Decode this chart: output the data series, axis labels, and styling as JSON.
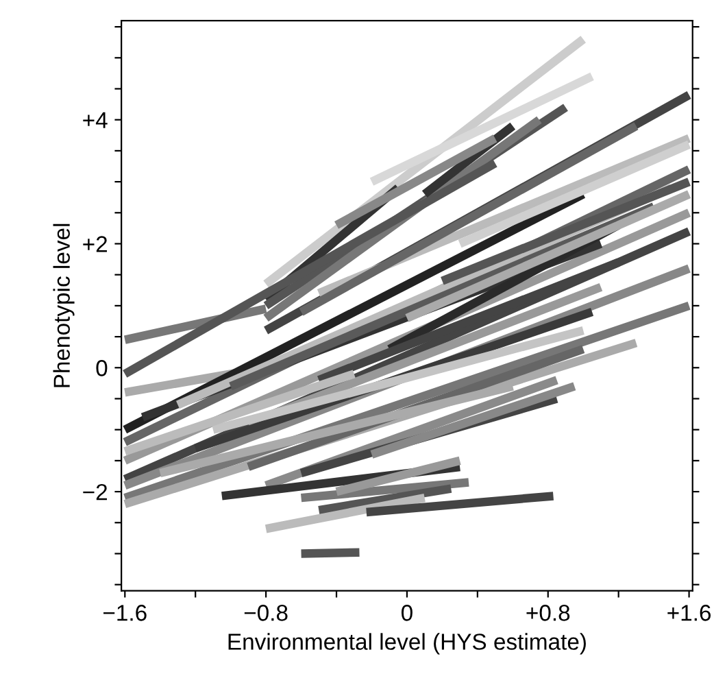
{
  "chart_data": {
    "type": "line",
    "xlabel": "Environmental level (HYS estimate)",
    "ylabel": "Phenotypic level",
    "xlim": [
      -1.62,
      1.62
    ],
    "ylim": [
      -3.6,
      5.6
    ],
    "xticks": [
      {
        "value": -1.6,
        "label": "−1.6"
      },
      {
        "value": -1.2,
        "label": null
      },
      {
        "value": -0.8,
        "label": "−0.8"
      },
      {
        "value": -0.4,
        "label": null
      },
      0,
      {
        "value": 0.4,
        "label": null
      },
      {
        "value": 0.8,
        "label": "+0.8"
      },
      {
        "value": 1.2,
        "label": null
      },
      {
        "value": 1.6,
        "label": "+1.6"
      }
    ],
    "yticks": [
      {
        "value": -3.5,
        "label": null
      },
      {
        "value": -3,
        "label": null
      },
      {
        "value": -2.5,
        "label": null
      },
      {
        "value": -2,
        "label": "−2"
      },
      {
        "value": -1.5,
        "label": null
      },
      {
        "value": -1,
        "label": null
      },
      {
        "value": -0.5,
        "label": null
      },
      0,
      {
        "value": 0.5,
        "label": null
      },
      {
        "value": 1,
        "label": null
      },
      {
        "value": 1.5,
        "label": null
      },
      {
        "value": 2,
        "label": "+2"
      },
      {
        "value": 2.5,
        "label": null
      },
      {
        "value": 3,
        "label": null
      },
      {
        "value": 3.5,
        "label": null
      },
      {
        "value": 4,
        "label": "+4"
      },
      {
        "value": 4.5,
        "label": null
      },
      {
        "value": 5,
        "label": null
      },
      {
        "value": 5.5,
        "label": null
      }
    ],
    "grid": false,
    "legend": false,
    "marker": "none",
    "line_style": "solid",
    "series": [
      {
        "color": "#cccccc",
        "x": [
          -0.8,
          1.0
        ],
        "values": [
          1.35,
          5.3
        ]
      },
      {
        "color": "#d8d8d8",
        "x": [
          -0.2,
          1.05
        ],
        "values": [
          3.0,
          4.7
        ]
      },
      {
        "color": "#333333",
        "x": [
          -0.8,
          -0.05
        ],
        "values": [
          1.1,
          2.9
        ]
      },
      {
        "color": "#555555",
        "x": [
          -0.8,
          0.9
        ],
        "values": [
          1.0,
          4.2
        ]
      },
      {
        "color": "#777777",
        "x": [
          -0.8,
          0.75
        ],
        "values": [
          0.8,
          4.0
        ]
      },
      {
        "color": "#444444",
        "x": [
          -0.8,
          1.6
        ],
        "values": [
          0.6,
          4.4
        ]
      },
      {
        "color": "#bbbbbb",
        "x": [
          -0.5,
          1.6
        ],
        "values": [
          1.2,
          3.7
        ]
      },
      {
        "color": "#666666",
        "x": [
          -0.6,
          1.3
        ],
        "values": [
          0.9,
          3.9
        ]
      },
      {
        "color": "#777777",
        "x": [
          -1.6,
          -0.8
        ],
        "values": [
          0.45,
          0.95
        ]
      },
      {
        "color": "#555555",
        "x": [
          -1.6,
          0.5
        ],
        "values": [
          -0.1,
          3.3
        ]
      },
      {
        "color": "#aaaaaa",
        "x": [
          -1.6,
          -0.9
        ],
        "values": [
          -0.4,
          -0.05
        ]
      },
      {
        "color": "#222222",
        "x": [
          -1.6,
          1.0
        ],
        "values": [
          -1.0,
          2.8
        ]
      },
      {
        "color": "#666666",
        "x": [
          -1.6,
          1.6
        ],
        "values": [
          -1.2,
          3.2
        ]
      },
      {
        "color": "#999999",
        "x": [
          -1.6,
          1.6
        ],
        "values": [
          -1.5,
          2.5
        ]
      },
      {
        "color": "#444444",
        "x": [
          -1.6,
          1.6
        ],
        "values": [
          -1.8,
          2.2
        ]
      },
      {
        "color": "#888888",
        "x": [
          -1.6,
          1.6
        ],
        "values": [
          -1.9,
          1.6
        ]
      },
      {
        "color": "#777777",
        "x": [
          -1.6,
          1.6
        ],
        "values": [
          -2.1,
          1.0
        ]
      },
      {
        "color": "#aaaaaa",
        "x": [
          -1.6,
          1.3
        ],
        "values": [
          -2.2,
          0.4
        ]
      },
      {
        "color": "#333333",
        "x": [
          -1.5,
          1.1
        ],
        "values": [
          -0.8,
          2.0
        ]
      },
      {
        "color": "#bbbbbb",
        "x": [
          -1.3,
          1.5
        ],
        "values": [
          -0.6,
          2.9
        ]
      },
      {
        "color": "#5a5a5a",
        "x": [
          -1.0,
          1.4
        ],
        "values": [
          -0.3,
          2.6
        ]
      },
      {
        "color": "#999999",
        "x": [
          -0.9,
          1.1
        ],
        "values": [
          -0.9,
          1.3
        ]
      },
      {
        "color": "#3a3a3a",
        "x": [
          -1.2,
          1.05
        ],
        "values": [
          -1.3,
          0.9
        ]
      },
      {
        "color": "#c4c4c4",
        "x": [
          -1.1,
          1.0
        ],
        "values": [
          -1.0,
          0.6
        ]
      },
      {
        "color": "#666666",
        "x": [
          -0.9,
          1.0
        ],
        "values": [
          -1.6,
          0.3
        ]
      },
      {
        "color": "#8a8a8a",
        "x": [
          -0.8,
          0.85
        ],
        "values": [
          -1.9,
          -0.2
        ]
      },
      {
        "color": "#444444",
        "x": [
          -0.6,
          0.85
        ],
        "values": [
          -1.7,
          -0.5
        ]
      },
      {
        "color": "#aaaaaa",
        "x": [
          -1.4,
          0.6
        ],
        "values": [
          -1.7,
          -0.3
        ]
      },
      {
        "color": "#333333",
        "x": [
          -1.05,
          0.3
        ],
        "values": [
          -2.07,
          -1.6
        ]
      },
      {
        "color": "#777777",
        "x": [
          -0.6,
          0.35
        ],
        "values": [
          -2.1,
          -1.85
        ]
      },
      {
        "color": "#555555",
        "x": [
          -0.5,
          0.25
        ],
        "values": [
          -2.3,
          -1.95
        ]
      },
      {
        "color": "#999999",
        "x": [
          -0.4,
          0.3
        ],
        "values": [
          -2.0,
          -1.5
        ]
      },
      {
        "color": "#bbbbbb",
        "x": [
          -0.8,
          0.1
        ],
        "values": [
          -2.6,
          -2.1
        ]
      },
      {
        "color": "#444444",
        "x": [
          -0.23,
          0.83
        ],
        "values": [
          -2.33,
          -2.07
        ]
      },
      {
        "color": "#555555",
        "x": [
          -0.6,
          -0.27
        ],
        "values": [
          -3.0,
          -2.98
        ]
      },
      {
        "color": "#888888",
        "x": [
          -0.2,
          0.95
        ],
        "values": [
          -1.4,
          -0.3
        ]
      },
      {
        "color": "#2a2a2a",
        "x": [
          -0.1,
          1.2
        ],
        "values": [
          0.3,
          2.3
        ]
      },
      {
        "color": "#aaaaaa",
        "x": [
          0.0,
          1.6
        ],
        "values": [
          0.8,
          2.8
        ]
      },
      {
        "color": "#555555",
        "x": [
          0.2,
          1.6
        ],
        "values": [
          1.4,
          3.0
        ]
      },
      {
        "color": "#cfcfcf",
        "x": [
          0.3,
          1.6
        ],
        "values": [
          2.0,
          3.6
        ]
      },
      {
        "color": "#333333",
        "x": [
          0.1,
          0.6
        ],
        "values": [
          2.8,
          3.9
        ]
      },
      {
        "color": "#888888",
        "x": [
          -0.4,
          0.5
        ],
        "values": [
          2.3,
          3.7
        ]
      },
      {
        "color": "#444444",
        "x": [
          -0.5,
          1.2
        ],
        "values": [
          -0.2,
          1.7
        ]
      },
      {
        "color": "#bbbbbb",
        "x": [
          -1.6,
          -0.3
        ],
        "values": [
          -1.35,
          -0.1
        ]
      }
    ]
  }
}
